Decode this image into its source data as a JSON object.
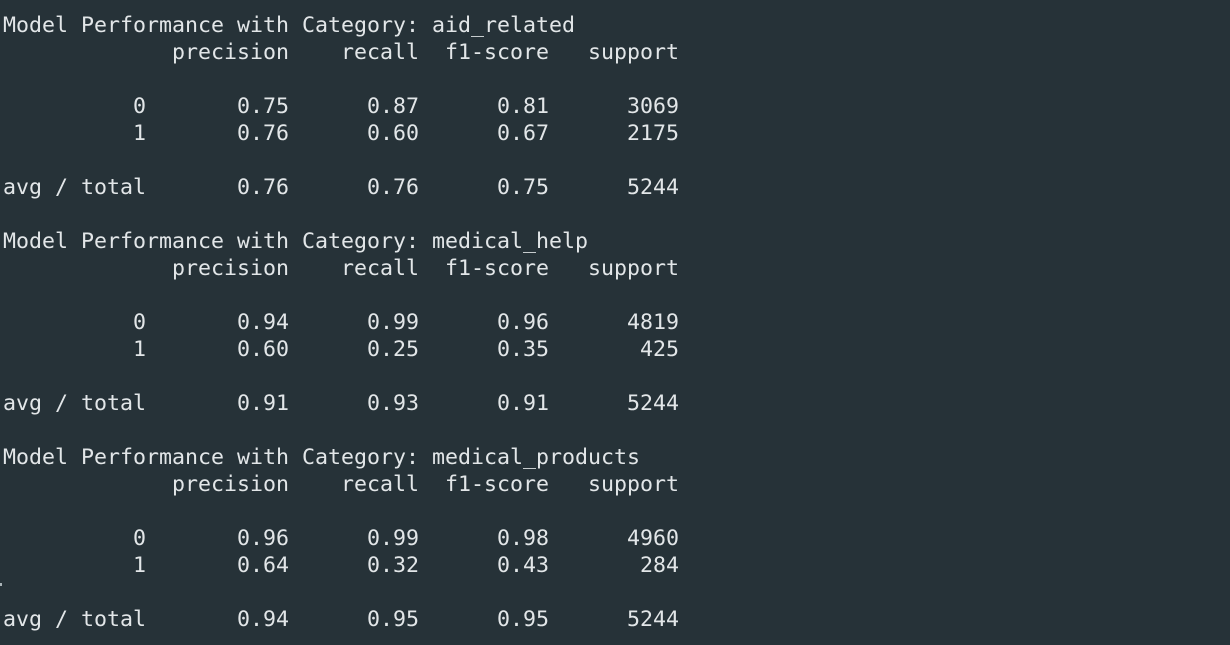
{
  "terminal_lines": [
    "Model Performance with Category: aid_related",
    "             precision    recall  f1-score   support",
    "",
    "          0       0.75      0.87      0.81      3069",
    "          1       0.76      0.60      0.67      2175",
    "",
    "avg / total       0.76      0.76      0.75      5244",
    "",
    "Model Performance with Category: medical_help",
    "             precision    recall  f1-score   support",
    "",
    "          0       0.94      0.99      0.96      4819",
    "          1       0.60      0.25      0.35       425",
    "",
    "avg / total       0.91      0.93      0.91      5244",
    "",
    "Model Performance with Category: medical_products",
    "             precision    recall  f1-score   support",
    "",
    "          0       0.96      0.99      0.98      4960",
    "          1       0.64      0.32      0.43       284",
    "",
    "avg / total       0.94      0.95      0.95      5244"
  ],
  "colors": {
    "background": "#263238",
    "foreground": "#e2e6e8"
  }
}
